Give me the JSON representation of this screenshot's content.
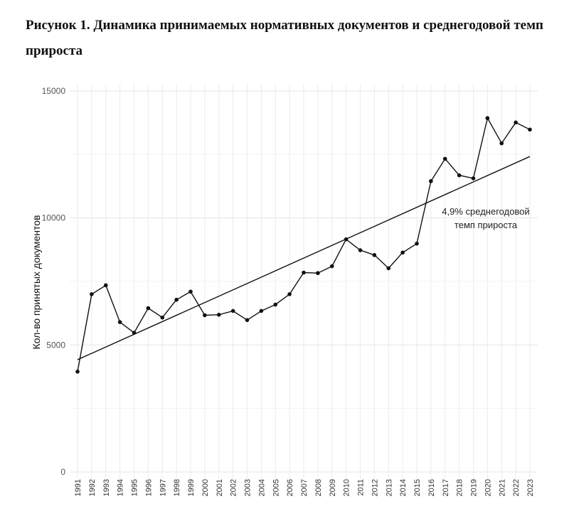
{
  "chart_data": {
    "type": "line",
    "title": "Рисунок 1. Динамика принимаемых нормативных документов и среднегодовой темп прироста",
    "xlabel": "",
    "ylabel": "Кол-во принятых документов",
    "ylim": [
      0,
      15000
    ],
    "yticks": [
      "0",
      "5000",
      "10000",
      "15000"
    ],
    "grid": true,
    "categories": [
      "1991",
      "1992",
      "1993",
      "1994",
      "1995",
      "1996",
      "1997",
      "1998",
      "1999",
      "2000",
      "2001",
      "2002",
      "2003",
      "2004",
      "2005",
      "2006",
      "2007",
      "2008",
      "2009",
      "2010",
      "2011",
      "2012",
      "2013",
      "2014",
      "2015",
      "2016",
      "2017",
      "2018",
      "2019",
      "2020",
      "2021",
      "2022",
      "2023"
    ],
    "series": [
      {
        "values": [
          3950,
          7000,
          7350,
          5900,
          5480,
          6450,
          6080,
          6780,
          7100,
          6170,
          6190,
          6340,
          5980,
          6340,
          6590,
          7000,
          7850,
          7830,
          8100,
          9160,
          8730,
          8540,
          8020,
          8640,
          8990,
          11450,
          12330,
          11680,
          11560,
          13930,
          12940,
          13760,
          13480
        ]
      }
    ],
    "trend": {
      "start": 4420,
      "end": 12420
    },
    "annotation": {
      "line1": "4,9% среднегодовой",
      "line2": "темп прироста"
    }
  }
}
